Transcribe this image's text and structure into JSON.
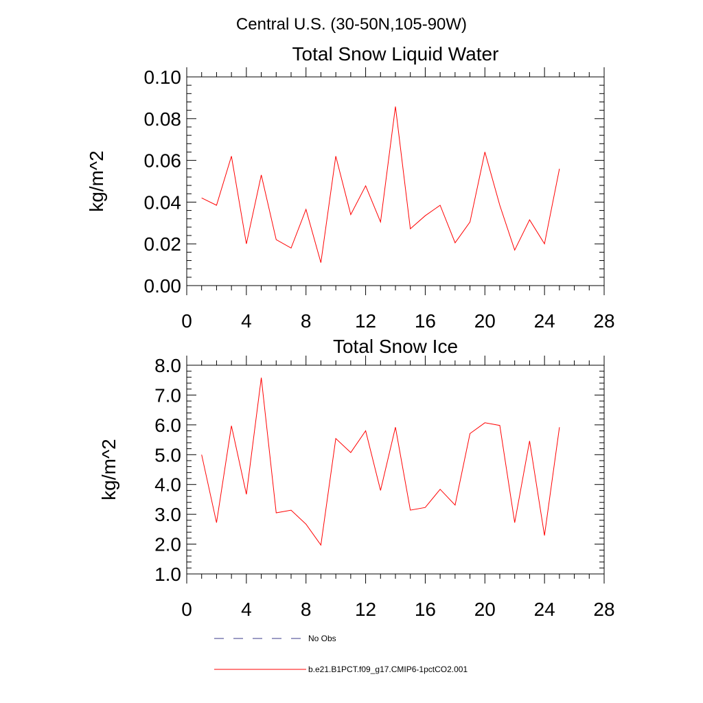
{
  "page_title": "Central U.S. (30-50N,105-90W)",
  "chart_data": [
    {
      "type": "line",
      "title": "Total Snow Liquid Water",
      "ylabel": "kg/m^2",
      "xlabel": "",
      "xlim": [
        0,
        28
      ],
      "ylim": [
        0,
        0.1
      ],
      "x_ticks": [
        "0",
        "4",
        "8",
        "12",
        "16",
        "20",
        "24",
        "28"
      ],
      "y_ticks": [
        "0.00",
        "0.02",
        "0.04",
        "0.06",
        "0.08",
        "0.10"
      ],
      "grid": false,
      "series": [
        {
          "name": "b.e21.B1PCT.f09_g17.CMIP6-1pctCO2.001",
          "color": "#ff0000",
          "x": [
            1,
            2,
            3,
            4,
            5,
            6,
            7,
            8,
            9,
            10,
            11,
            12,
            13,
            14,
            15,
            16,
            17,
            18,
            19,
            20,
            21,
            22,
            23,
            24,
            25
          ],
          "values": [
            0.042,
            0.0385,
            0.062,
            0.02,
            0.053,
            0.022,
            0.018,
            0.0365,
            0.011,
            0.062,
            0.034,
            0.0478,
            0.0305,
            0.0858,
            0.0272,
            0.0335,
            0.0385,
            0.0205,
            0.0305,
            0.064,
            0.0385,
            0.017,
            0.0315,
            0.02,
            0.056
          ]
        }
      ]
    },
    {
      "type": "line",
      "title": "Total Snow Ice",
      "ylabel": "kg/m^2",
      "xlabel": "",
      "xlim": [
        0,
        28
      ],
      "ylim": [
        1,
        8
      ],
      "x_ticks": [
        "0",
        "4",
        "8",
        "12",
        "16",
        "20",
        "24",
        "28"
      ],
      "y_ticks": [
        "1.0",
        "2.0",
        "3.0",
        "4.0",
        "5.0",
        "6.0",
        "7.0",
        "8.0"
      ],
      "grid": false,
      "series": [
        {
          "name": "b.e21.B1PCT.f09_g17.CMIP6-1pctCO2.001",
          "color": "#ff0000",
          "x": [
            1,
            2,
            3,
            4,
            5,
            6,
            7,
            8,
            9,
            10,
            11,
            12,
            13,
            14,
            15,
            16,
            17,
            18,
            19,
            20,
            21,
            22,
            23,
            24,
            25
          ],
          "values": [
            5.0,
            2.72,
            5.97,
            3.67,
            7.58,
            3.05,
            3.14,
            2.67,
            1.97,
            5.54,
            5.07,
            5.8,
            3.8,
            5.92,
            3.14,
            3.23,
            3.84,
            3.31,
            5.71,
            6.07,
            5.98,
            2.72,
            5.46,
            2.29,
            5.92
          ]
        }
      ]
    }
  ],
  "legend": {
    "placement": "bottom",
    "items": [
      {
        "label": "No Obs",
        "color": "#3a3a8a",
        "style": "dashed"
      },
      {
        "label": "b.e21.B1PCT.f09_g17.CMIP6-1pctCO2.001",
        "color": "#ff0000",
        "style": "solid"
      }
    ]
  }
}
